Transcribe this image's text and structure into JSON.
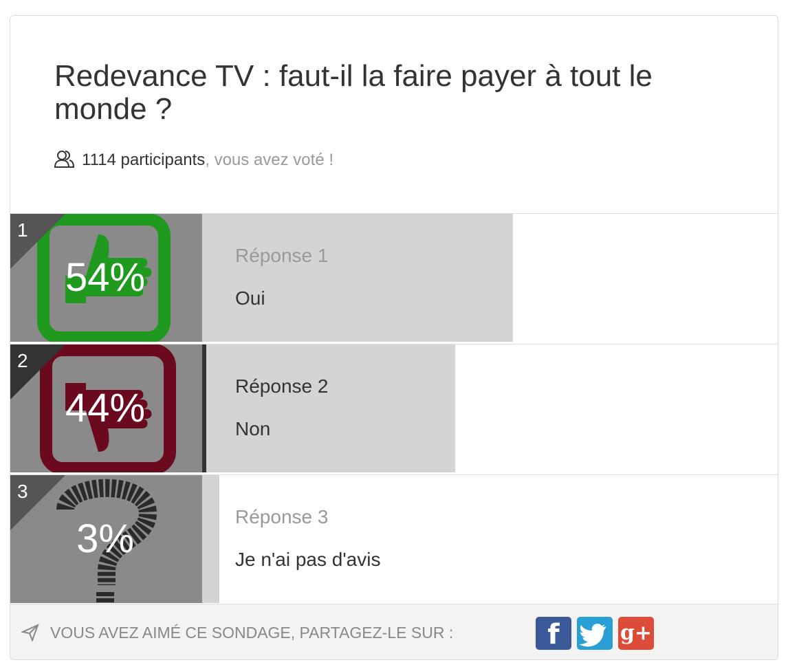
{
  "header": {
    "title": "Redevance TV : faut-il la faire payer à tout le monde ?",
    "participants": "1114 participants",
    "voted": ", vous avez voté !"
  },
  "options": [
    {
      "rank": 1,
      "percent": 54,
      "percent_label": "54%",
      "label": "Réponse 1",
      "text": "Oui"
    },
    {
      "rank": 2,
      "percent": 44,
      "percent_label": "44%",
      "label": "Réponse 2",
      "text": "Non"
    },
    {
      "rank": 3,
      "percent": 3,
      "percent_label": "3%",
      "label": "Réponse 3",
      "text": "Je n'ai pas d'avis"
    }
  ],
  "footer": {
    "share": "VOUS AVEZ AIMÉ CE SONDAGE, PARTAGEZ-LE SUR :",
    "facebook": "f",
    "google": "g+"
  }
}
